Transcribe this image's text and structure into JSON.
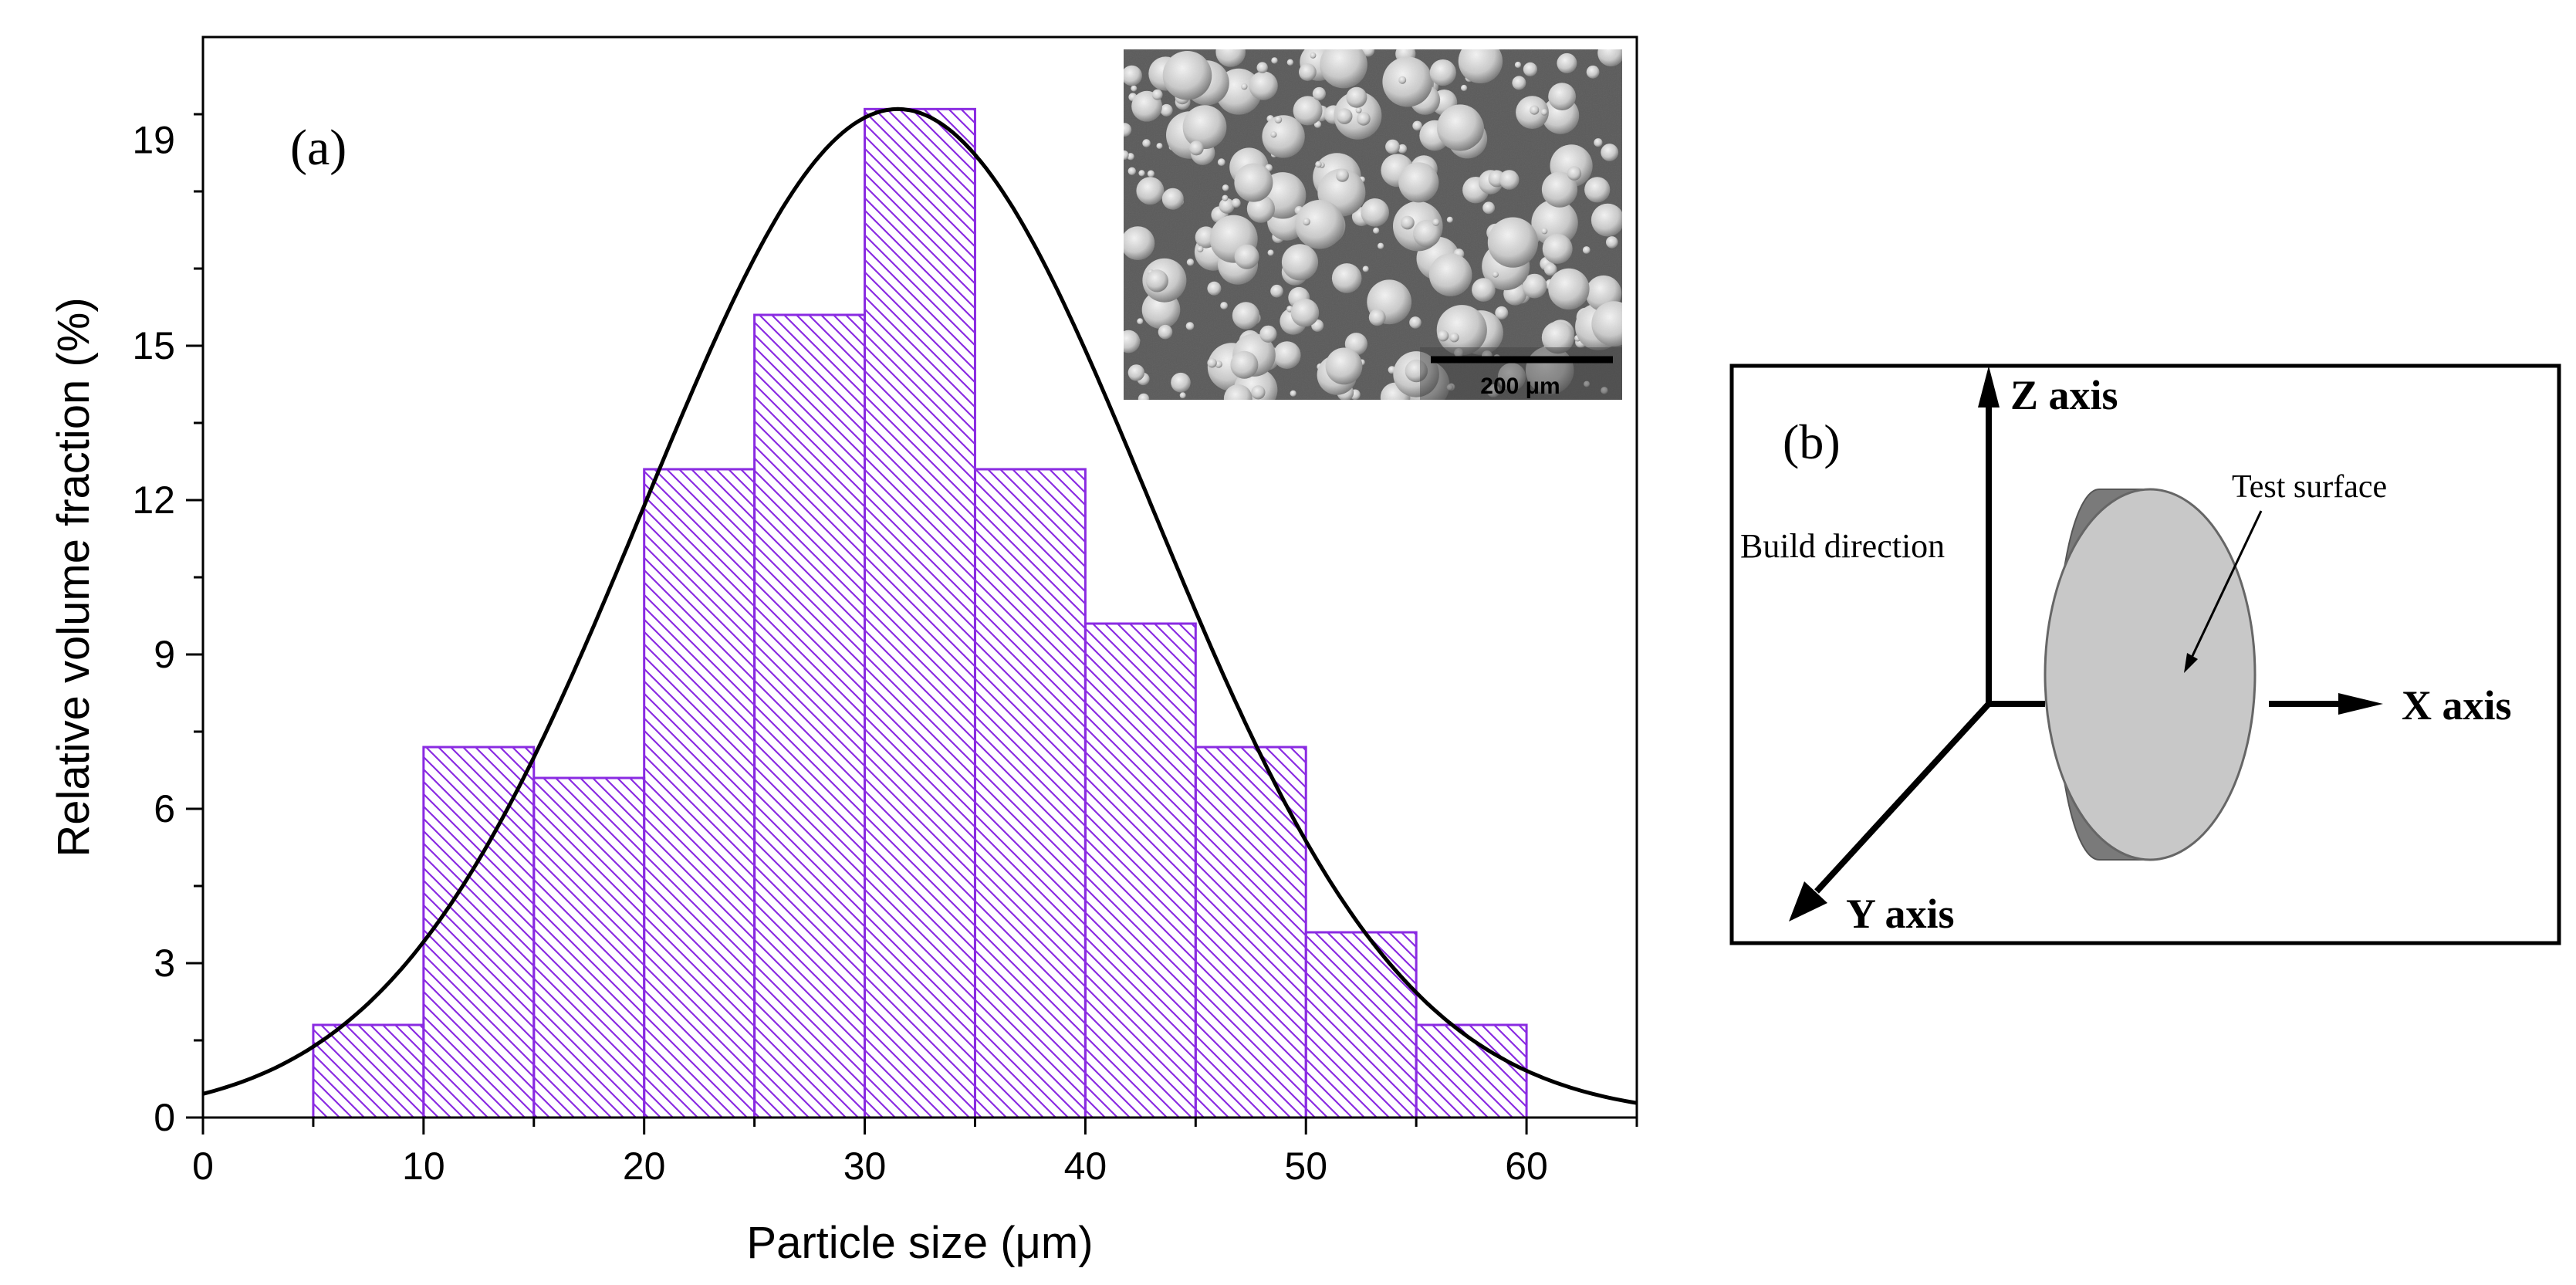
{
  "figure": {
    "panel_a_label": "(a)",
    "panel_b_label": "(b)"
  },
  "chart_data": {
    "type": "bar",
    "subtype": "histogram with fitted normal curve",
    "xlabel": "Particle size (μm)",
    "ylabel": "Relative volume fraction (%)",
    "xlim": [
      0,
      65
    ],
    "ylim": [
      0,
      21
    ],
    "xticks": [
      0,
      10,
      20,
      30,
      40,
      50,
      60
    ],
    "yticks": [
      0,
      3,
      6,
      9,
      12,
      15,
      19
    ],
    "bins": [
      {
        "range": [
          5,
          10
        ],
        "value": 1.8
      },
      {
        "range": [
          10,
          15
        ],
        "value": 7.2
      },
      {
        "range": [
          15,
          20
        ],
        "value": 6.6
      },
      {
        "range": [
          20,
          25
        ],
        "value": 12.6
      },
      {
        "range": [
          25,
          30
        ],
        "value": 15.6
      },
      {
        "range": [
          30,
          35
        ],
        "value": 19.6
      },
      {
        "range": [
          35,
          40
        ],
        "value": 12.6
      },
      {
        "range": [
          40,
          45
        ],
        "value": 9.6
      },
      {
        "range": [
          45,
          50
        ],
        "value": 7.2
      },
      {
        "range": [
          50,
          55
        ],
        "value": 3.6
      },
      {
        "range": [
          55,
          60
        ],
        "value": 1.8
      }
    ],
    "fit": {
      "distribution": "normal",
      "mean": 31.5,
      "sd": 11.5,
      "peak": 19.6
    },
    "bar_color": "#8a2be2",
    "fit_color": "#000000",
    "inset": {
      "scale_bar_label": "200 μm"
    }
  },
  "diagram_b": {
    "z_axis": "Z axis",
    "x_axis": "X axis",
    "y_axis": "Y axis",
    "build_direction": "Build direction",
    "test_surface": "Test surface",
    "disk_face_color": "#c8c8c8",
    "disk_edge_color": "#7a7a7a"
  }
}
